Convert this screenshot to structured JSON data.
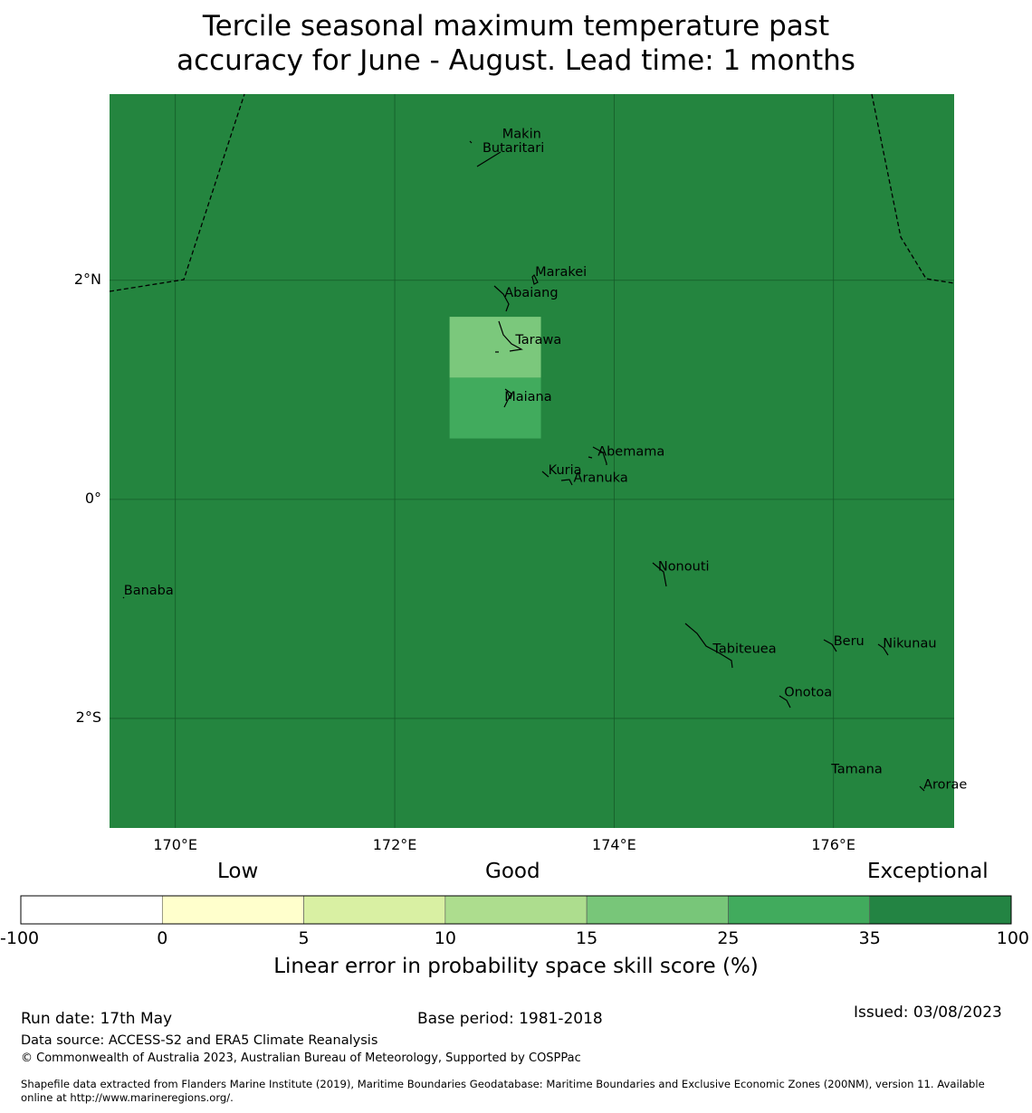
{
  "title": {
    "line1": "Tercile seasonal maximum temperature past",
    "line2": "accuracy for June - August. Lead time: 1 months"
  },
  "colors": {
    "background": "#24853f",
    "gridline": "#145a28",
    "boundary": "#000000"
  },
  "axes": {
    "lat_ticks": [
      {
        "value": 2,
        "label": "2°N"
      },
      {
        "value": 0,
        "label": "0°"
      },
      {
        "value": -2,
        "label": "2°S"
      }
    ],
    "lon_ticks": [
      {
        "value": 170,
        "label": "170°E"
      },
      {
        "value": 172,
        "label": "172°E"
      },
      {
        "value": 174,
        "label": "174°E"
      },
      {
        "value": 176,
        "label": "176°E"
      }
    ],
    "lon_range": [
      169.4,
      177.1
    ],
    "lat_range": [
      -3.0,
      3.7
    ]
  },
  "cells": [
    {
      "lon_range": [
        172.5,
        173.333
      ],
      "lat_range": [
        1.111,
        1.667
      ],
      "category": "15-25",
      "color": "#7bc87c"
    },
    {
      "lon_range": [
        172.5,
        173.333
      ],
      "lat_range": [
        0.556,
        1.111
      ],
      "category": "25-35",
      "color": "#41ab5d"
    }
  ],
  "places": [
    {
      "name": "Makin",
      "lon": 172.98,
      "lat": 3.3
    },
    {
      "name": "Butaritari",
      "lon": 172.8,
      "lat": 3.17
    },
    {
      "name": "Marakei",
      "lon": 173.28,
      "lat": 2.04
    },
    {
      "name": "Abaiang",
      "lon": 173.0,
      "lat": 1.85
    },
    {
      "name": "Tarawa",
      "lon": 173.1,
      "lat": 1.42
    },
    {
      "name": "Maiana",
      "lon": 173.0,
      "lat": 0.9
    },
    {
      "name": "Abemama",
      "lon": 173.85,
      "lat": 0.4
    },
    {
      "name": "Kuria",
      "lon": 173.4,
      "lat": 0.23
    },
    {
      "name": "Aranuka",
      "lon": 173.63,
      "lat": 0.16
    },
    {
      "name": "Nonouti",
      "lon": 174.4,
      "lat": -0.65
    },
    {
      "name": "Banaba",
      "lon": 169.53,
      "lat": -0.87
    },
    {
      "name": "Beru",
      "lon": 176.0,
      "lat": -1.33
    },
    {
      "name": "Nikunau",
      "lon": 176.45,
      "lat": -1.35
    },
    {
      "name": "Tabiteuea",
      "lon": 174.9,
      "lat": -1.4
    },
    {
      "name": "Onotoa",
      "lon": 175.55,
      "lat": -1.8
    },
    {
      "name": "Tamana",
      "lon": 175.98,
      "lat": -2.5
    },
    {
      "name": "Arorae",
      "lon": 176.82,
      "lat": -2.64
    }
  ],
  "colorbar": {
    "headings": {
      "low": "Low",
      "good": "Good",
      "exceptional": "Exceptional"
    },
    "bins": [
      {
        "from": "-100",
        "to": "0",
        "color": "#ffffff"
      },
      {
        "from": "0",
        "to": "5",
        "color": "#ffffcc"
      },
      {
        "from": "5",
        "to": "10",
        "color": "#d9f0a3"
      },
      {
        "from": "10",
        "to": "15",
        "color": "#addd8e"
      },
      {
        "from": "15",
        "to": "25",
        "color": "#78c679"
      },
      {
        "from": "25",
        "to": "35",
        "color": "#41ab5d"
      },
      {
        "from": "35",
        "to": "100",
        "color": "#238443"
      }
    ],
    "tick_labels": [
      "-100",
      "0",
      "5",
      "10",
      "15",
      "25",
      "35",
      "100"
    ],
    "label": "Linear error in probability space skill score (%)"
  },
  "footer": {
    "run_date": "Run date: 17th May",
    "base_period": "Base period: 1981-2018",
    "issued": "Issued: 03/08/2023",
    "data_source": "Data source: ACCESS-S2 and ERA5 Climate Reanalysis",
    "copyright": "© Commonwealth of Australia 2023, Australian Bureau of Meteorology, Supported by COSPPac",
    "shapefile_line1": "Shapefile data extracted from Flanders Marine Institute (2019), Maritime Boundaries Geodatabase: Maritime Boundaries and Exclusive Economic Zones (200NM), version 11. Available",
    "shapefile_line2": "online at http://www.marineregions.org/."
  }
}
